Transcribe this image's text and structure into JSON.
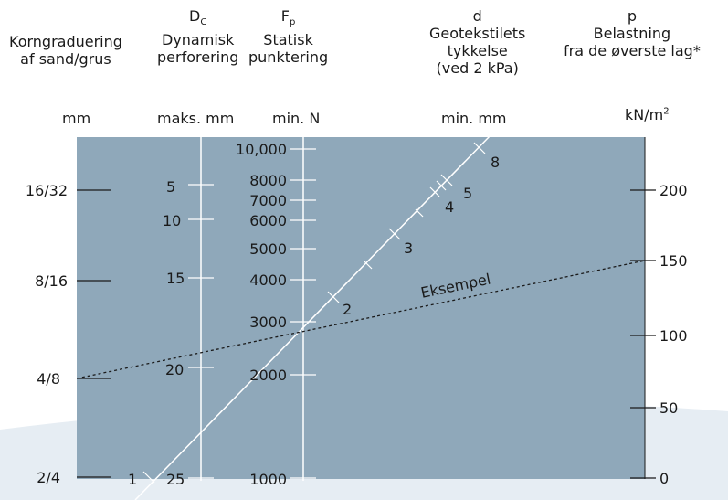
{
  "header": {
    "col1": {
      "line1": "Korngraduering",
      "line2": "af sand/grus",
      "unit": "mm"
    },
    "col2": {
      "symbol": "D",
      "symbol_sub": "C",
      "line1": "Dynamisk",
      "line2": "perforering",
      "unit": "maks. mm"
    },
    "col3": {
      "symbol": "F",
      "symbol_sub": "p",
      "line1": "Statisk",
      "line2": "punktering",
      "unit": "min. N"
    },
    "col4": {
      "symbol": "d",
      "line1": "Geotekstilets",
      "line2": "tykkelse",
      "line3": "(ved 2 kPa)",
      "unit": "min. mm"
    },
    "col5": {
      "symbol": "p",
      "line1": "Belastning",
      "line2": "fra de øverste lag*",
      "unit": "kN/m",
      "unit_sup": "2"
    }
  },
  "scales": {
    "grain": [
      "16/32",
      "8/16",
      "4/8",
      "2/4"
    ],
    "perforation": [
      "5",
      "10",
      "15",
      "20",
      "25"
    ],
    "puncture": [
      "10,000",
      "8000",
      "7000",
      "6000",
      "5000",
      "4000",
      "3000",
      "2000",
      "1000"
    ],
    "thickness": [
      "8",
      "5",
      "4",
      "3",
      "2",
      "1"
    ],
    "load": [
      "200",
      "150",
      "100",
      "50",
      "0"
    ]
  },
  "example_label": "Eksempel",
  "colors": {
    "panel": "#8fa8ba",
    "scale_line": "#ffffff",
    "swoosh": "#dde7ef",
    "text": "#1a1a1a"
  }
}
